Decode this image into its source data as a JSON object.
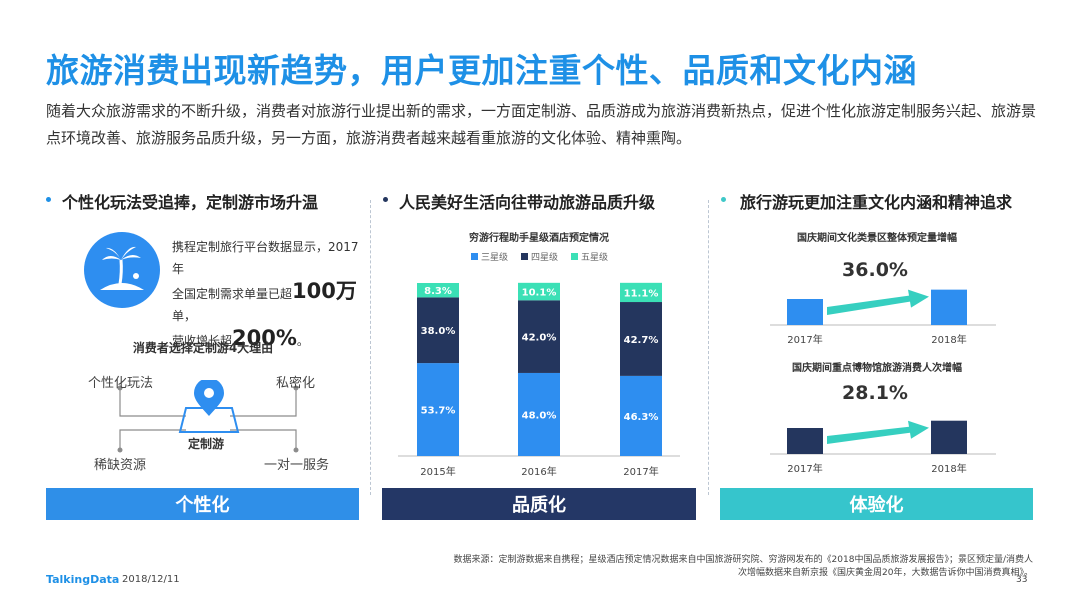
{
  "title": "旅游消费出现新趋势，用户更加注重个性、品质和文化内涵",
  "intro": "随着大众旅游需求的不断升级，消费者对旅游行业提出新的需求，一方面定制游、品质游成为旅游消费新热点，促进个性化旅游定制服务兴起、旅游景点环境改善、旅游服务品质升级，另一方面，旅游消费者越来越看重旅游的文化体验、精神熏陶。",
  "colors": {
    "accent": "#1e90e6",
    "navy": "#283a66",
    "teal": "#3fc8c8",
    "blue": "#2e8ef0",
    "navy_bar": "#24365e",
    "teal_bar": "#3be0b6",
    "band1": "#2f8fe8",
    "band2": "#243766",
    "band3": "#36c5cc"
  },
  "col1": {
    "heading": "个性化玩法受追捧，定制游市场升温",
    "stat_line1": "携程定制旅行平台数据显示，2017年",
    "stat_line2_pre": "全国定制需求单量已超",
    "stat_line2_big": "100万",
    "stat_line2_post": "单，",
    "stat_line3_pre": "营收增长超",
    "stat_line3_big": "200%",
    "stat_line3_post": "。",
    "icon": "palm-beach-icon",
    "reasons_title": "消费者选择定制游4大理由",
    "reasons": [
      "个性化玩法",
      "私密化",
      "稀缺资源",
      "一对一服务"
    ],
    "center_label": "定制游",
    "band": "个性化"
  },
  "col2": {
    "heading": "人民美好生活向往带动旅游品质升级",
    "band": "品质化"
  },
  "col3": {
    "heading": "旅行游玩更加注重文化内涵和精神追求",
    "band": "体验化"
  },
  "chart_data": [
    {
      "type": "bar",
      "stacked": true,
      "title": "穷游行程助手星级酒店预定情况",
      "categories": [
        "2015年",
        "2016年",
        "2017年"
      ],
      "series": [
        {
          "name": "三星级",
          "values": [
            53.7,
            48.0,
            46.3
          ],
          "labels": [
            "53.7%",
            "48.0%",
            "46.3%"
          ],
          "color": "#2e8ef0"
        },
        {
          "name": "四星级",
          "values": [
            38.0,
            42.0,
            42.7
          ],
          "labels": [
            "38.0%",
            "42.0%",
            "42.7%"
          ],
          "color": "#24365e"
        },
        {
          "name": "五星级",
          "values": [
            8.3,
            10.1,
            11.1
          ],
          "labels": [
            "8.3%",
            "10.1%",
            "11.1%"
          ],
          "color": "#3be0b6"
        }
      ],
      "legend": "top"
    },
    {
      "type": "bar",
      "title": "国庆期间文化类景区整体预定量增幅",
      "categories": [
        "2017年",
        "2018年"
      ],
      "values": [
        1.0,
        1.36
      ],
      "annotation": "36.0%",
      "color": "#2e8ef0"
    },
    {
      "type": "bar",
      "title": "国庆期间重点博物馆旅游消费人次增幅",
      "categories": [
        "2017年",
        "2018年"
      ],
      "values": [
        1.0,
        1.281
      ],
      "annotation": "28.1%",
      "color": "#24365e"
    }
  ],
  "footer": {
    "source_line1": "数据来源：定制游数据来自携程；星级酒店预定情况数据来自中国旅游研究院、穷游网发布的《2018中国品质旅游发展报告》；景区预定量/消费人",
    "source_line2": "次增幅数据来自新京报《国庆黄金周20年，大数据告诉你中国消费真相》。",
    "brand": "TalkingData",
    "date": "2018/12/11",
    "page": "33"
  }
}
